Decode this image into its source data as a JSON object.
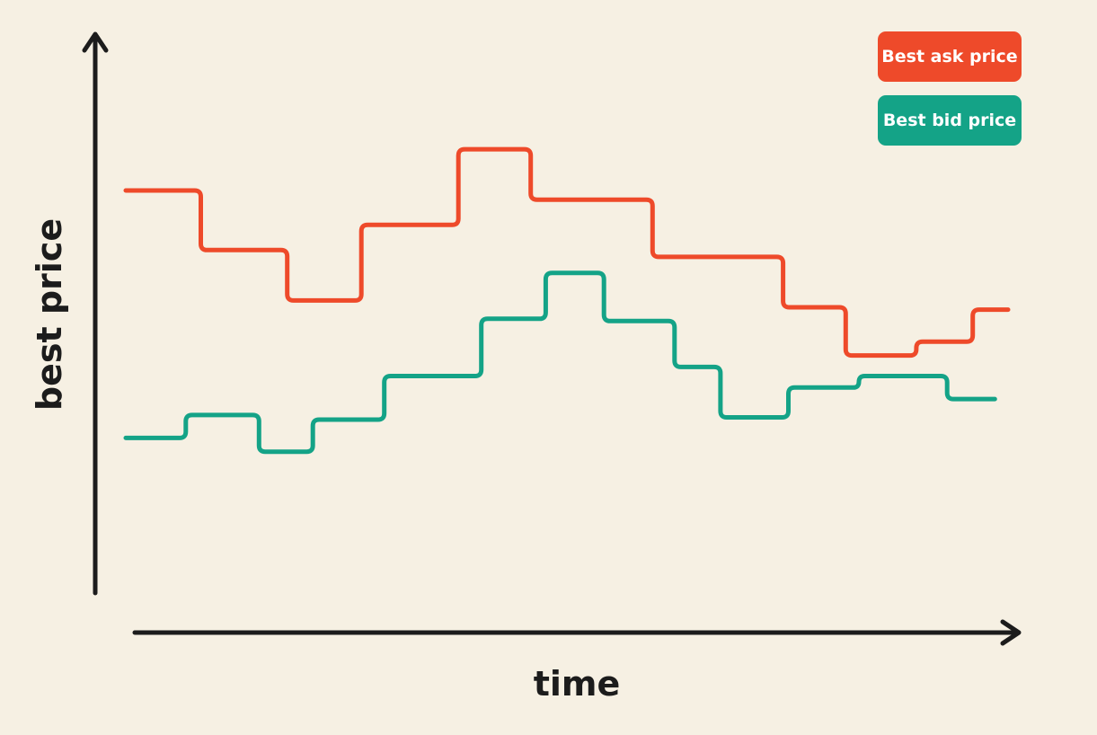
{
  "chart_data": {
    "type": "line",
    "step": true,
    "title": "",
    "xlabel": "time",
    "ylabel": "best price",
    "grid": false,
    "legend_placement": "top-right",
    "xlim": [
      0,
      100
    ],
    "ylim": [
      0,
      100
    ],
    "series": [
      {
        "name": "Best ask price",
        "color": "#ee4a2a",
        "points": [
          [
            0,
            80
          ],
          [
            8.5,
            80
          ],
          [
            8.5,
            67
          ],
          [
            18.3,
            67
          ],
          [
            18.3,
            56
          ],
          [
            26.7,
            56
          ],
          [
            26.7,
            72.5
          ],
          [
            37.7,
            72.5
          ],
          [
            37.7,
            89
          ],
          [
            45.9,
            89
          ],
          [
            45.9,
            78
          ],
          [
            59.7,
            78
          ],
          [
            59.7,
            65.5
          ],
          [
            74.5,
            65.5
          ],
          [
            74.5,
            54.5
          ],
          [
            81.6,
            54.5
          ],
          [
            81.6,
            44
          ],
          [
            89.6,
            44
          ],
          [
            89.6,
            47
          ],
          [
            96,
            47
          ],
          [
            96,
            54
          ],
          [
            100,
            54
          ]
        ]
      },
      {
        "name": "Best bid price",
        "color": "#14a387",
        "points": [
          [
            0,
            26
          ],
          [
            6.8,
            26
          ],
          [
            6.8,
            31
          ],
          [
            15.1,
            31
          ],
          [
            15.1,
            23
          ],
          [
            21.2,
            23
          ],
          [
            21.2,
            30
          ],
          [
            29.3,
            30
          ],
          [
            29.3,
            39.5
          ],
          [
            40.3,
            39.5
          ],
          [
            40.3,
            52
          ],
          [
            47.6,
            52
          ],
          [
            47.6,
            62
          ],
          [
            54.2,
            62
          ],
          [
            54.2,
            51.5
          ],
          [
            62.2,
            51.5
          ],
          [
            62.2,
            41.5
          ],
          [
            67.4,
            41.5
          ],
          [
            67.4,
            30.5
          ],
          [
            75.1,
            30.5
          ],
          [
            75.1,
            37
          ],
          [
            83.1,
            37
          ],
          [
            83.1,
            39.5
          ],
          [
            93.1,
            39.5
          ],
          [
            93.1,
            34.5
          ],
          [
            98.5,
            34.5
          ]
        ]
      }
    ]
  }
}
